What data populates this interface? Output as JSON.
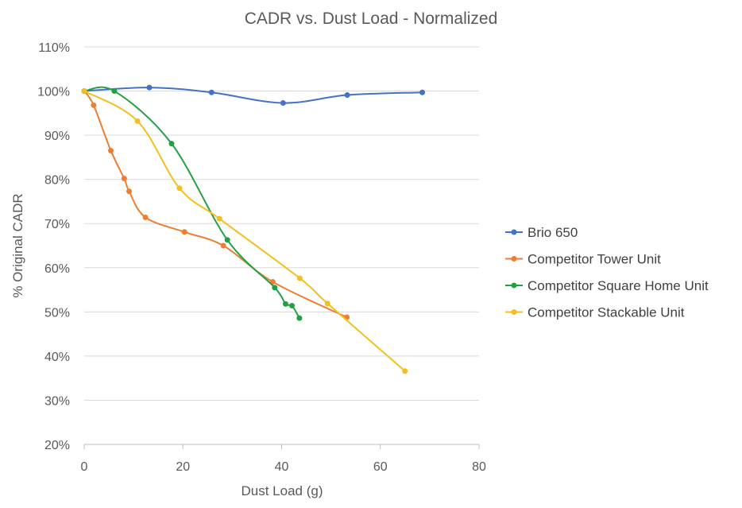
{
  "chart_data": {
    "type": "line",
    "title": "CADR vs. Dust Load - Normalized",
    "xlabel": "Dust Load (g)",
    "ylabel": "% Original CADR",
    "xlim": [
      0,
      80
    ],
    "ylim": [
      20,
      110
    ],
    "x_ticks": [
      "0",
      "20",
      "40",
      "60",
      "80"
    ],
    "y_ticks": [
      "20%",
      "30%",
      "40%",
      "50%",
      "60%",
      "70%",
      "80%",
      "90%",
      "100%",
      "110%"
    ],
    "grid": "horizontal",
    "legend_position": "right",
    "series": [
      {
        "name": "Brio 650",
        "color": "#4472C4",
        "points": [
          [
            0,
            100
          ],
          [
            13.2,
            100.8
          ],
          [
            25.8,
            99.7
          ],
          [
            40.3,
            97.3
          ],
          [
            53.3,
            99.1
          ],
          [
            68.5,
            99.7
          ]
        ]
      },
      {
        "name": "Competitor Tower Unit",
        "color": "#ED7D31",
        "points": [
          [
            0,
            100
          ],
          [
            1.9,
            96.8
          ],
          [
            5.4,
            86.5
          ],
          [
            8.1,
            80.2
          ],
          [
            9.1,
            77.3
          ],
          [
            12.4,
            71.4
          ],
          [
            20.3,
            68.1
          ],
          [
            28.2,
            65.0
          ],
          [
            38.2,
            56.8
          ],
          [
            53.2,
            48.8
          ]
        ]
      },
      {
        "name": "Competitor Square Home Unit",
        "color": "#22A144",
        "points": [
          [
            0,
            100
          ],
          [
            6.1,
            100
          ],
          [
            17.7,
            88.1
          ],
          [
            29.0,
            66.3
          ],
          [
            38.6,
            55.5
          ],
          [
            40.8,
            51.8
          ],
          [
            42.1,
            51.4
          ],
          [
            43.6,
            48.6
          ]
        ]
      },
      {
        "name": "Competitor Stackable Unit",
        "color": "#F5BF1B",
        "points": [
          [
            0,
            100
          ],
          [
            10.8,
            93.2
          ],
          [
            19.3,
            78.0
          ],
          [
            27.4,
            71.1
          ],
          [
            43.7,
            57.6
          ],
          [
            49.3,
            51.9
          ],
          [
            65.0,
            36.6
          ]
        ]
      }
    ]
  }
}
